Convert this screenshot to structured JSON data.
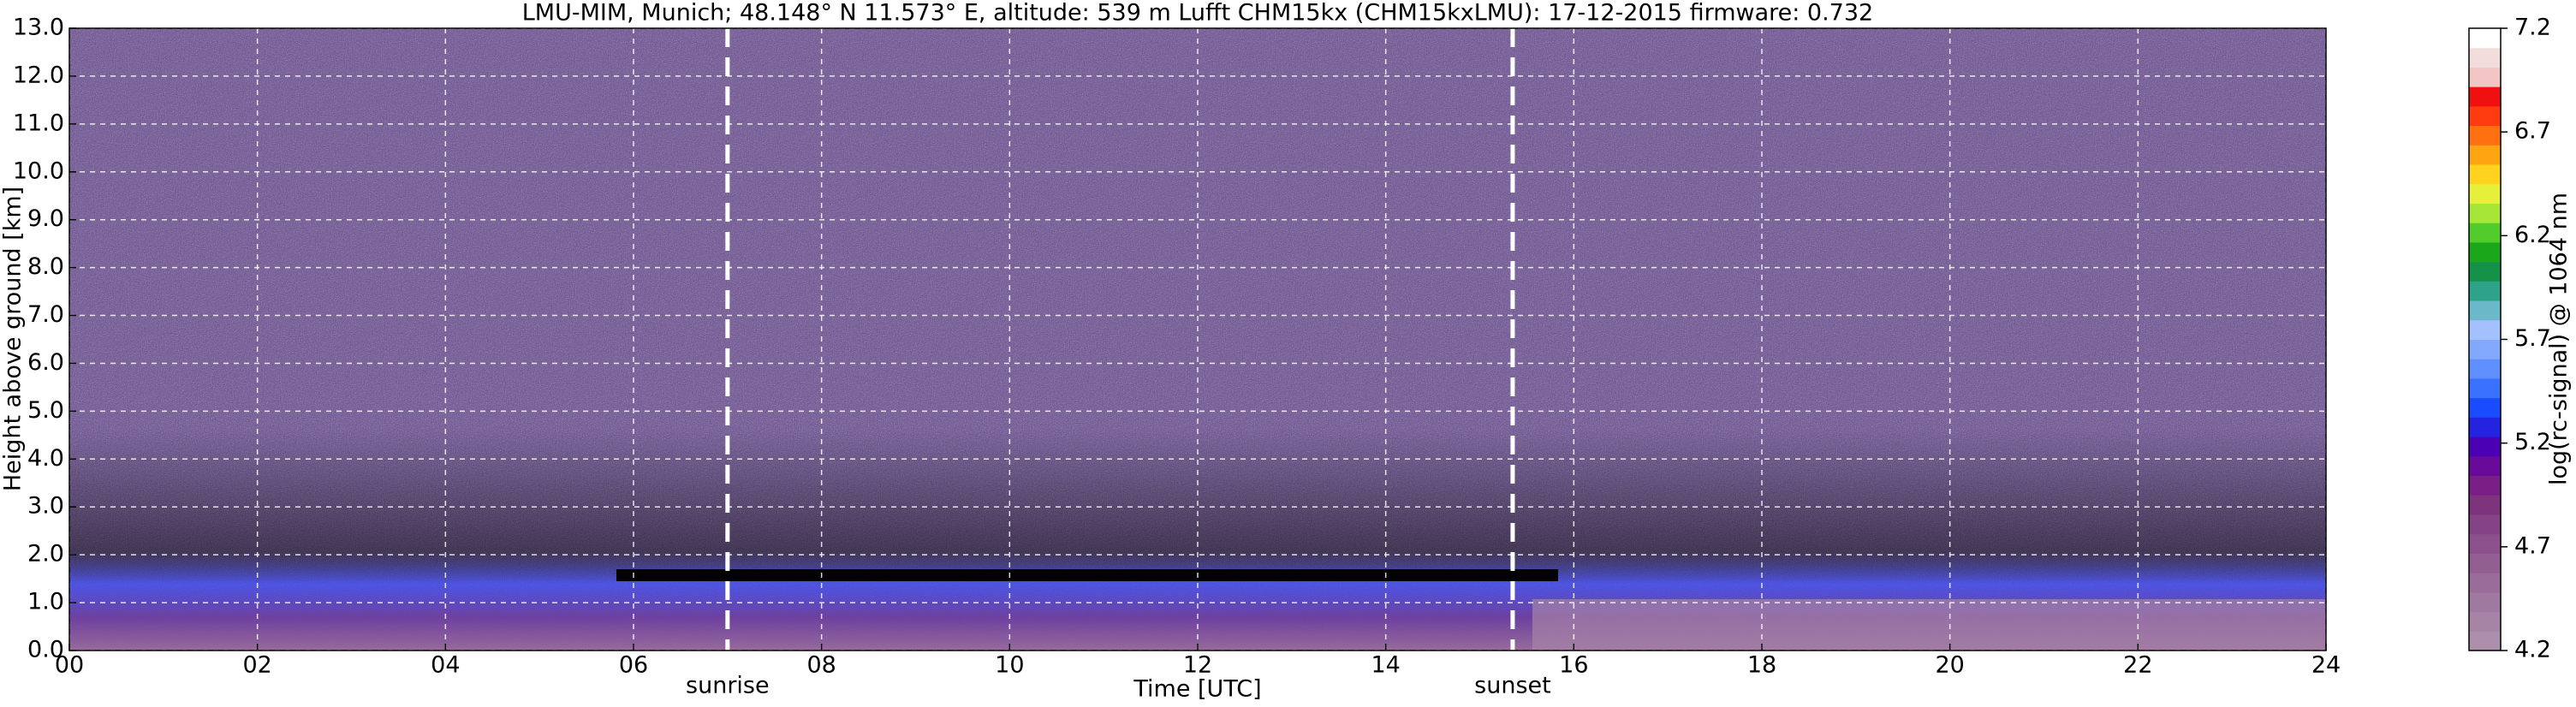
{
  "chart_data": {
    "type": "heatmap",
    "title": "LMU-MIM, Munich; 48.148° N 11.573° E, altitude: 539 m    Lufft CHM15kx (CHM15kxLMU): 17-12-2015    firmware: 0.732",
    "x_label": "Time [UTC]",
    "y_label": "Height above ground [km]",
    "xlim": [
      0,
      24
    ],
    "ylim": [
      0,
      13
    ],
    "xticks": [
      {
        "value": 0,
        "label": "00"
      },
      {
        "value": 2,
        "label": "02"
      },
      {
        "value": 4,
        "label": "04"
      },
      {
        "value": 6,
        "label": "06"
      },
      {
        "value": 8,
        "label": "08"
      },
      10,
      12,
      14,
      16,
      18,
      20,
      22,
      24
    ],
    "yticks": [
      {
        "value": 0,
        "label": "0.0"
      },
      {
        "value": 1,
        "label": "1.0"
      },
      {
        "value": 2,
        "label": "2.0"
      },
      {
        "value": 3,
        "label": "3.0"
      },
      {
        "value": 4,
        "label": "4.0"
      },
      {
        "value": 5,
        "label": "5.0"
      },
      {
        "value": 6,
        "label": "6.0"
      },
      {
        "value": 7,
        "label": "7.0"
      },
      {
        "value": 8,
        "label": "8.0"
      },
      {
        "value": 9,
        "label": "9.0"
      },
      {
        "value": 10,
        "label": "10.0"
      },
      {
        "value": 11,
        "label": "11.0"
      },
      {
        "value": 12,
        "label": "12.0"
      },
      {
        "value": 13,
        "label": "13.0"
      }
    ],
    "grid": true,
    "vlines": [
      {
        "x": 7.0,
        "label": "sunrise"
      },
      {
        "x": 15.35,
        "label": "sunset"
      }
    ],
    "colorbar": {
      "label": "log(rc-signal) @ 1064 nm",
      "clim": [
        4.2,
        7.2
      ],
      "ticks": [
        4.2,
        4.7,
        5.2,
        5.7,
        6.2,
        6.7,
        7.2
      ],
      "colormap": [
        "#ab8fab",
        "#a684a6",
        "#a079a0",
        "#9a6c9a",
        "#935f93",
        "#8c518c",
        "#844384",
        "#7d347d",
        "#7a1f86",
        "#6a0a9a",
        "#4b00b4",
        "#2323e0",
        "#1a4cff",
        "#3a72ff",
        "#5f8fff",
        "#83a9ff",
        "#a4c0ff",
        "#6bb8c8",
        "#2fa38a",
        "#14924a",
        "#1aa81a",
        "#52cc2a",
        "#a6e636",
        "#e6f03a",
        "#ffd21e",
        "#ffa514",
        "#ff7010",
        "#ff3c10",
        "#f01010",
        "#f3c6c6",
        "#f2dcdc",
        "#ffffff"
      ]
    }
  }
}
